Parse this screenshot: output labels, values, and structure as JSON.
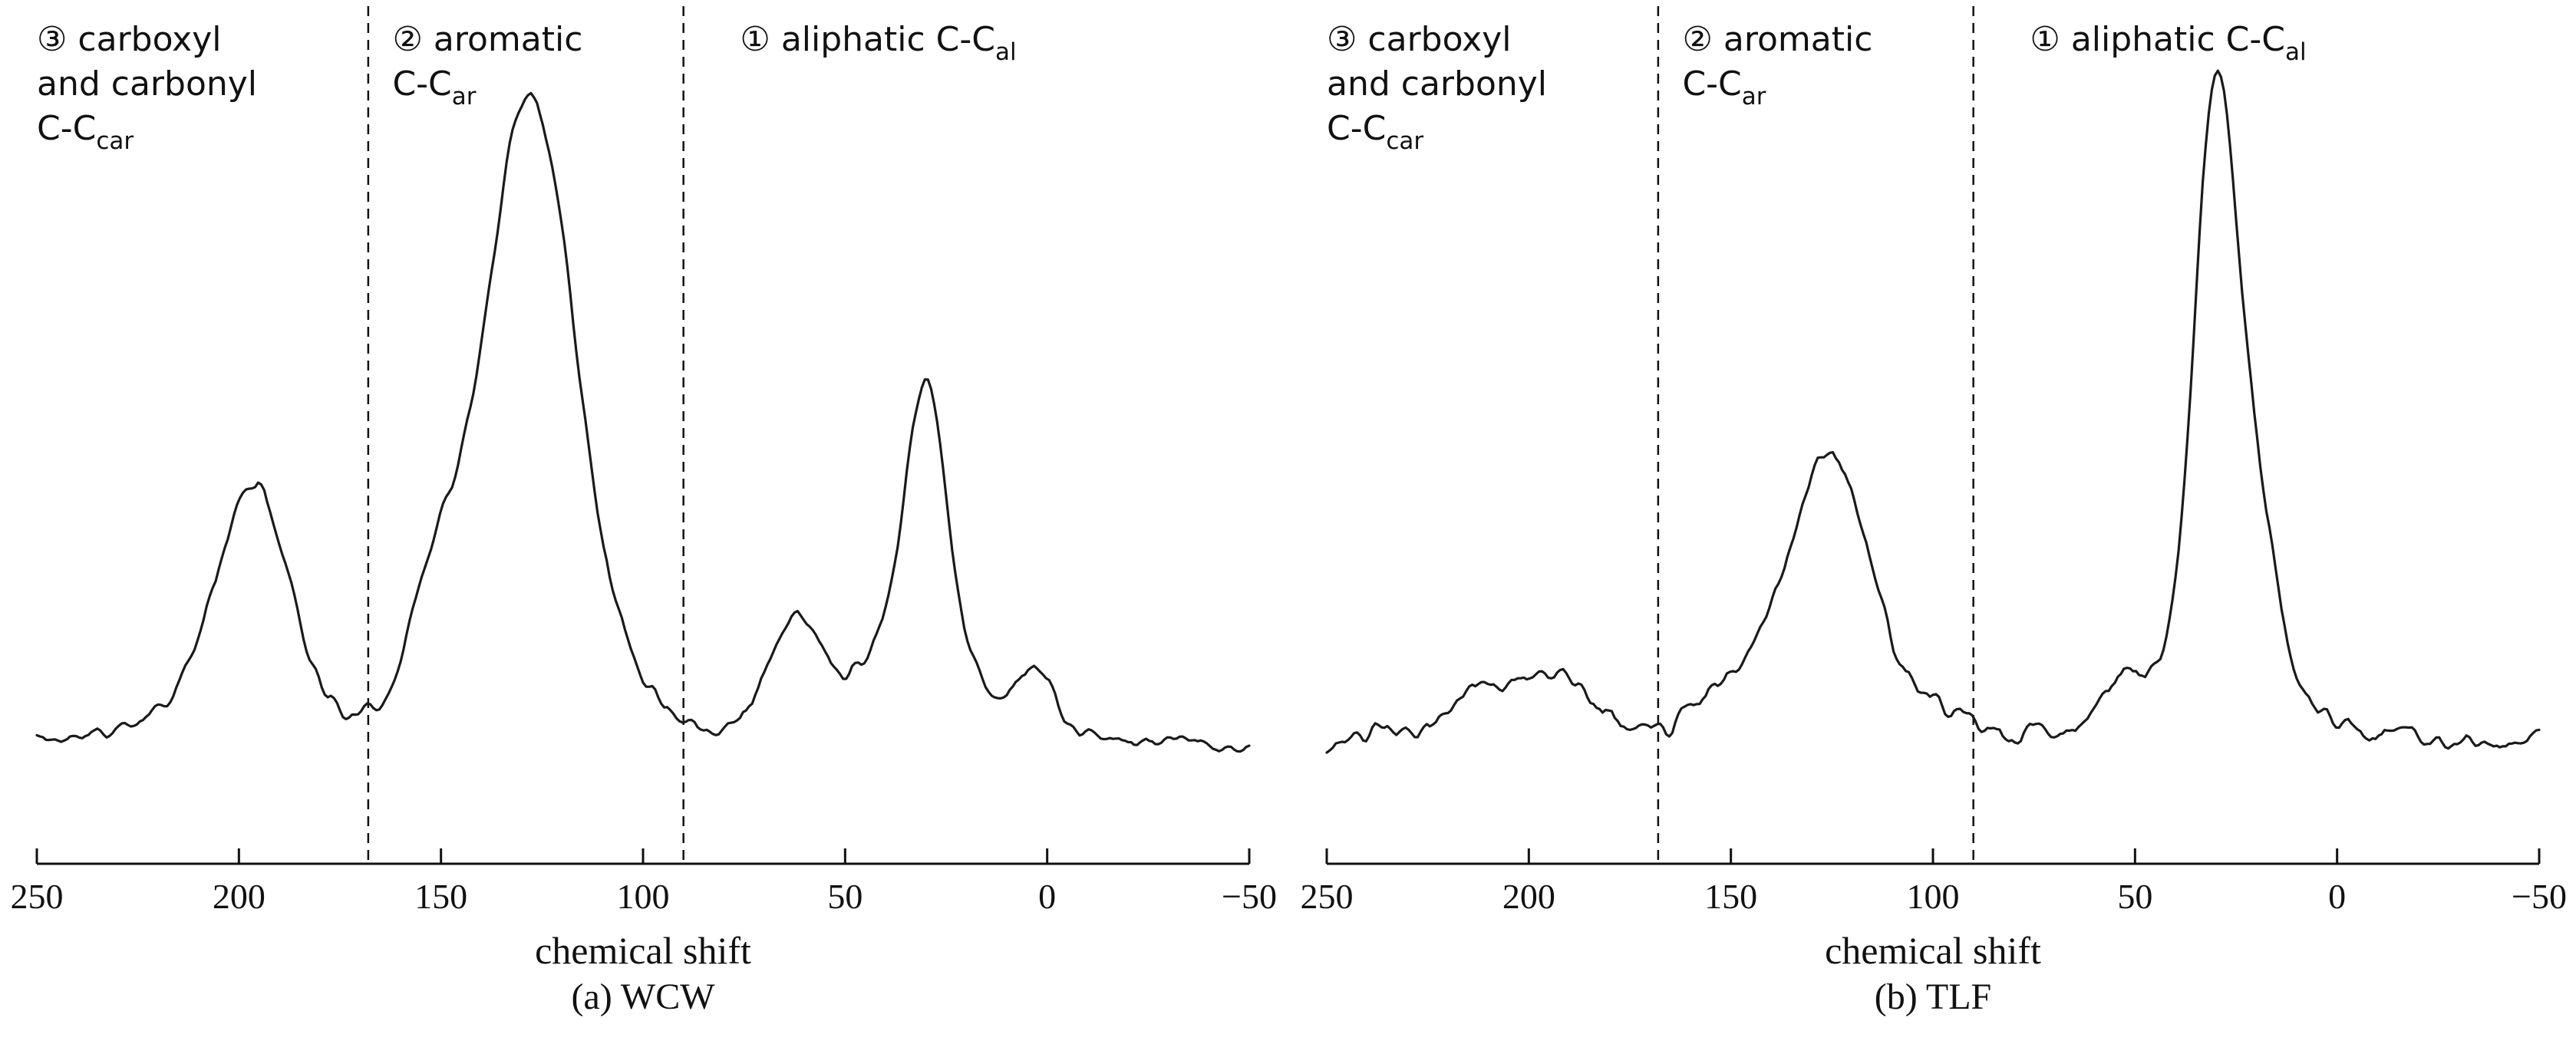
{
  "figure": {
    "background": "#ffffff",
    "line_color": "#1a1a1a",
    "axis_color": "#111111"
  },
  "chart_data": [
    {
      "type": "line",
      "panel": "a",
      "caption": "(a) WCW",
      "xlabel": "chemical shift",
      "ylabel": "",
      "xlim": [
        250,
        -50
      ],
      "x_reversed": true,
      "ylim": [
        0,
        1.1
      ],
      "grid": false,
      "x_ticks": [
        250,
        200,
        150,
        100,
        50,
        0,
        -50
      ],
      "x_tick_labels": [
        "250",
        "200",
        "150",
        "100",
        "50",
        "0",
        "−50"
      ],
      "divider_lines_x": [
        168,
        90
      ],
      "regions": [
        {
          "marker": "③",
          "name": "carboxyl and carbonyl C-C car",
          "range_ppm": [
            250,
            168
          ],
          "label_x_ppm": 250,
          "lines": [
            {
              "text": "③ carboxyl"
            },
            {
              "text": "and carbonyl"
            },
            {
              "text": "C-C",
              "sub": "car"
            }
          ]
        },
        {
          "marker": "②",
          "name": "aromatic C-C ar",
          "range_ppm": [
            168,
            90
          ],
          "label_x_ppm": 162,
          "lines": [
            {
              "text": "②  aromatic"
            },
            {
              "text": "C-C",
              "sub": "ar"
            }
          ]
        },
        {
          "marker": "①",
          "name": "aliphatic C-C al",
          "range_ppm": [
            90,
            -50
          ],
          "label_x_ppm": 76,
          "lines": [
            {
              "text": "① aliphatic C-C",
              "sub": "al"
            }
          ]
        }
      ],
      "peaks": [
        {
          "center": 210,
          "height": 0.05,
          "width": 15
        },
        {
          "center": 196,
          "height": 0.36,
          "width": 9
        },
        {
          "center": 152,
          "height": 0.16,
          "width": 6
        },
        {
          "center": 128,
          "height": 0.88,
          "width": 11
        },
        {
          "center": 128,
          "height": 0.12,
          "width": 25
        },
        {
          "center": 62,
          "height": 0.18,
          "width": 7
        },
        {
          "center": 30,
          "height": 0.35,
          "width": 4.5
        },
        {
          "center": 32,
          "height": 0.22,
          "width": 12
        },
        {
          "center": 3,
          "height": 0.1,
          "width": 5
        }
      ],
      "baseline": 0.0,
      "noise_amplitude_fast": 0.01,
      "noise_amplitude_slow": 0.012,
      "noise_seed": 11
    },
    {
      "type": "line",
      "panel": "b",
      "caption": "(b) TLF",
      "xlabel": "chemical shift",
      "ylabel": "",
      "xlim": [
        250,
        -50
      ],
      "x_reversed": true,
      "ylim": [
        0,
        1.1
      ],
      "grid": false,
      "x_ticks": [
        250,
        200,
        150,
        100,
        50,
        0,
        -50
      ],
      "x_tick_labels": [
        "250",
        "200",
        "150",
        "100",
        "50",
        "0",
        "−50"
      ],
      "divider_lines_x": [
        168,
        90
      ],
      "regions": [
        {
          "marker": "③",
          "name": "carboxyl and carbonyl C-C car",
          "range_ppm": [
            250,
            168
          ],
          "label_x_ppm": 250,
          "lines": [
            {
              "text": "③ carboxyl"
            },
            {
              "text": "and carbonyl"
            },
            {
              "text": "C-C",
              "sub": "car"
            }
          ]
        },
        {
          "marker": "②",
          "name": "aromatic C-C ar",
          "range_ppm": [
            168,
            90
          ],
          "label_x_ppm": 162,
          "lines": [
            {
              "text": "②  aromatic"
            },
            {
              "text": "C-C",
              "sub": "ar"
            }
          ]
        },
        {
          "marker": "①",
          "name": "aliphatic C-C al",
          "range_ppm": [
            90,
            -50
          ],
          "label_x_ppm": 76,
          "lines": [
            {
              "text": "① aliphatic C-C",
              "sub": "al"
            }
          ]
        }
      ],
      "peaks": [
        {
          "center": 215,
          "height": 0.04,
          "width": 10
        },
        {
          "center": 196,
          "height": 0.1,
          "width": 12
        },
        {
          "center": 150,
          "height": 0.06,
          "width": 8
        },
        {
          "center": 126,
          "height": 0.38,
          "width": 10
        },
        {
          "center": 122,
          "height": 0.06,
          "width": 25
        },
        {
          "center": 55,
          "height": 0.07,
          "width": 6
        },
        {
          "center": 30,
          "height": 0.8,
          "width": 5
        },
        {
          "center": 28,
          "height": 0.22,
          "width": 13
        },
        {
          "center": 20,
          "height": 0.18,
          "width": 5
        }
      ],
      "baseline": 0.0,
      "noise_amplitude_fast": 0.013,
      "noise_amplitude_slow": 0.015,
      "noise_seed": 23
    }
  ]
}
